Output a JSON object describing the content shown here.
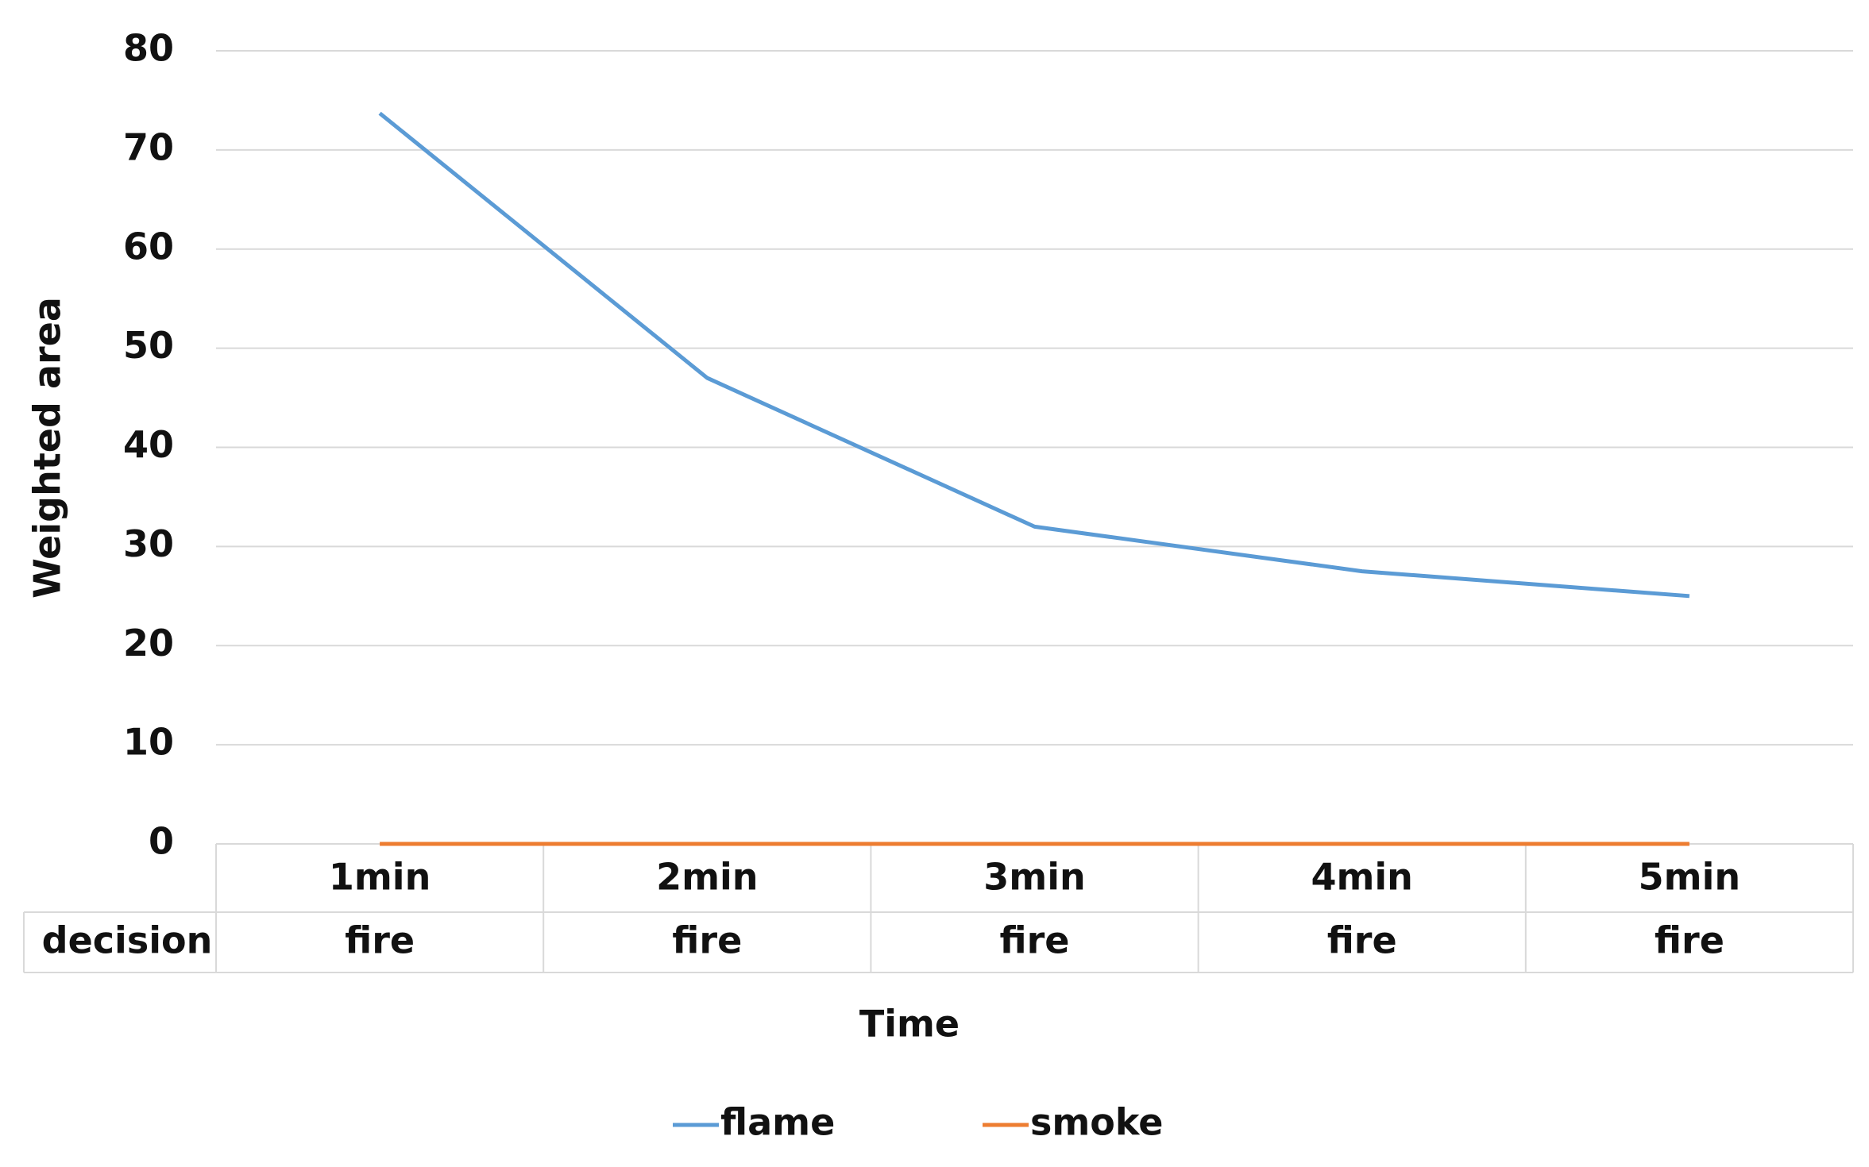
{
  "chart_data": {
    "type": "line",
    "y_label": "Weighted area",
    "x_label": "Time",
    "categories": [
      "1min",
      "2min",
      "3min",
      "4min",
      "5min"
    ],
    "series": [
      {
        "name": "flame",
        "color": "#5b9bd5",
        "values": [
          73.7,
          47,
          32,
          27.5,
          25
        ]
      },
      {
        "name": "smoke",
        "color": "#ed7d31",
        "values": [
          0,
          0,
          0,
          0,
          0
        ]
      }
    ],
    "table": {
      "label": "decision",
      "values": [
        "fire",
        "fire",
        "fire",
        "fire",
        "fire"
      ]
    },
    "ylim": [
      0,
      80
    ],
    "yticks": [
      0,
      10,
      20,
      30,
      40,
      50,
      60,
      70,
      80
    ],
    "grid": true
  }
}
